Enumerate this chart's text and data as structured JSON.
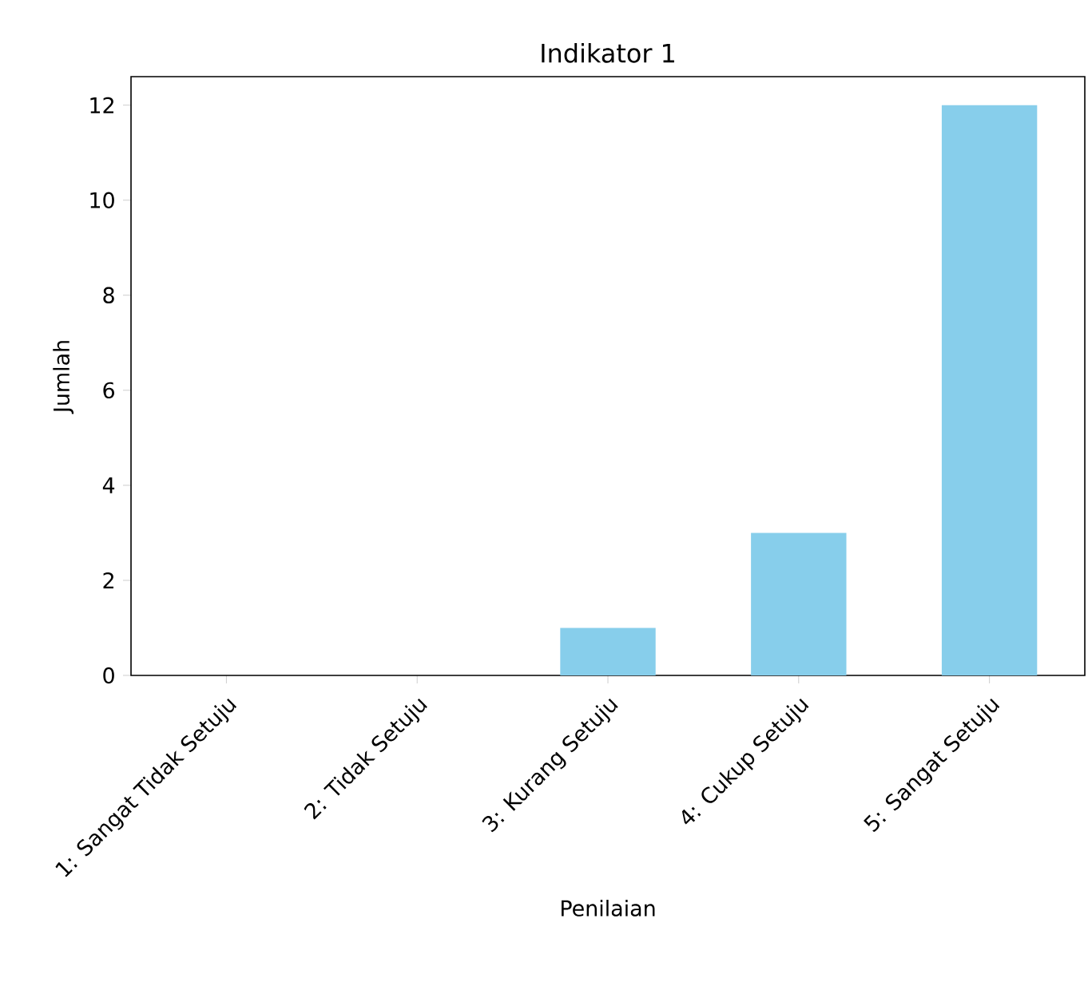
{
  "chart_data": {
    "type": "bar",
    "title": "Indikator 1",
    "xlabel": "Penilaian",
    "ylabel": "Jumlah",
    "categories": [
      "1: Sangat Tidak Setuju",
      "2: Tidak Setuju",
      "3: Kurang Setuju",
      "4: Cukup Setuju",
      "5: Sangat Setuju"
    ],
    "values": [
      0,
      0,
      1,
      3,
      12
    ],
    "color": "#87ceeb",
    "ylim": [
      0,
      12.6
    ],
    "yticks": [
      0,
      2,
      4,
      6,
      8,
      10,
      12
    ]
  }
}
